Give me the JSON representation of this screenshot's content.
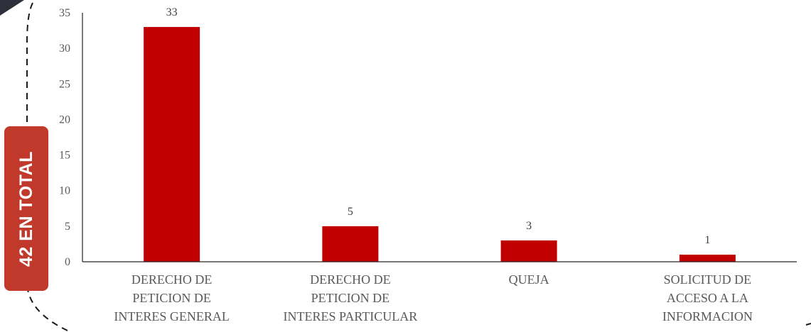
{
  "badge": {
    "text": "42 EN TOTAL"
  },
  "chart_data": {
    "type": "bar",
    "categories": [
      [
        "DERECHO DE",
        "PETICION DE",
        "INTERES GENERAL"
      ],
      [
        "DERECHO DE",
        "PETICION DE",
        "INTERES PARTICULAR"
      ],
      [
        "QUEJA"
      ],
      [
        "SOLICITUD DE",
        "ACCESO A LA",
        "INFORMACION"
      ]
    ],
    "values": [
      33,
      5,
      3,
      1
    ],
    "data_labels": [
      "33",
      "5",
      "3",
      "1"
    ],
    "y_ticks": [
      0,
      5,
      10,
      15,
      20,
      25,
      30,
      35
    ],
    "ylim": [
      0,
      35
    ],
    "bar_color": "#c00000",
    "title": "",
    "xlabel": "",
    "ylabel": "",
    "grid": false,
    "legend": false
  }
}
